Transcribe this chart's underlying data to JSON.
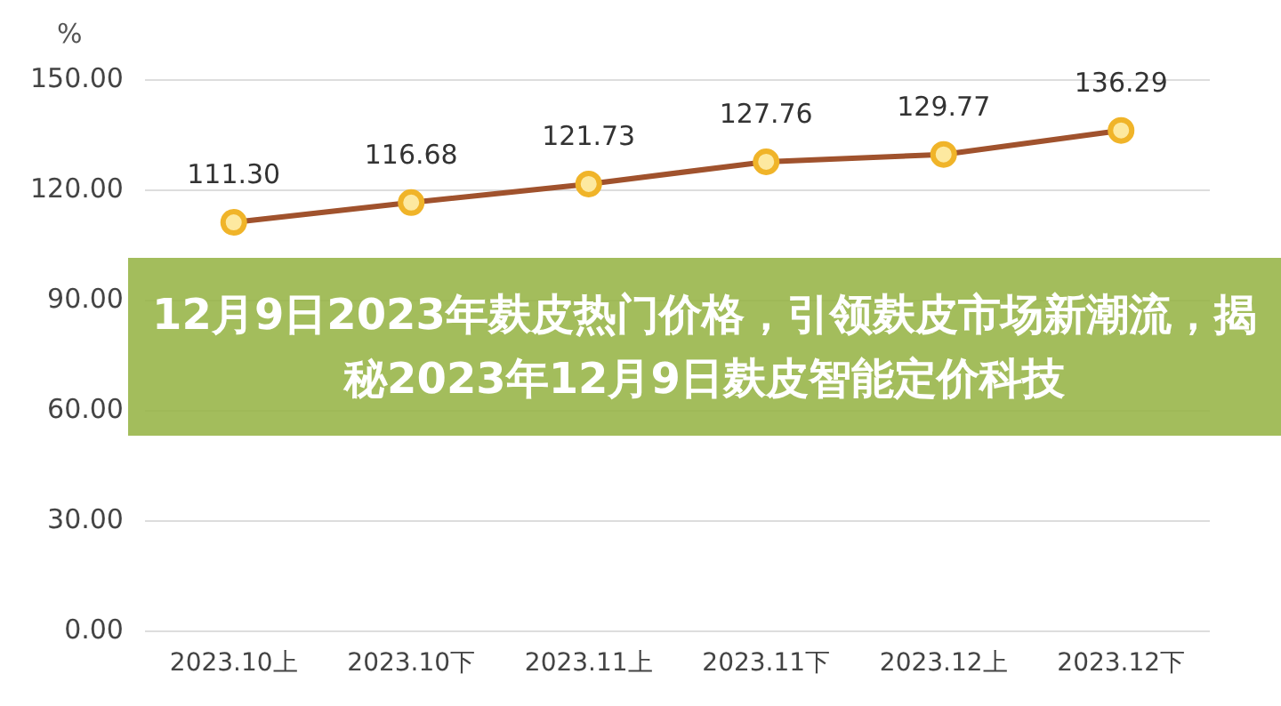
{
  "chart_data": {
    "type": "line",
    "title": "12月9日2023年麸皮热门价格，引领麸皮市场新潮流，揭秘2023年12月9日麸皮智能定价科技",
    "ylabel": "%",
    "categories": [
      "2023.10上",
      "2023.10下",
      "2023.11上",
      "2023.11下",
      "2023.12上",
      "2023.12下"
    ],
    "series": [
      {
        "color": "#a0522d",
        "values": [
          111.3,
          116.68,
          121.73,
          127.76,
          129.77,
          136.29
        ]
      }
    ],
    "ylim": [
      0,
      150
    ],
    "yticks": [
      {
        "value": 0,
        "label": "0.00"
      },
      {
        "value": 30,
        "label": "30.00"
      },
      {
        "value": 60,
        "label": "60.00"
      },
      {
        "value": 90,
        "label": "90.00"
      },
      {
        "value": 120,
        "label": "120.00"
      },
      {
        "value": 150,
        "label": "150.00"
      }
    ],
    "value_labels": [
      "111.30",
      "116.68",
      "121.73",
      "127.76",
      "129.77",
      "136.29"
    ],
    "grid": "y",
    "marker": "circle",
    "legend": false
  }
}
